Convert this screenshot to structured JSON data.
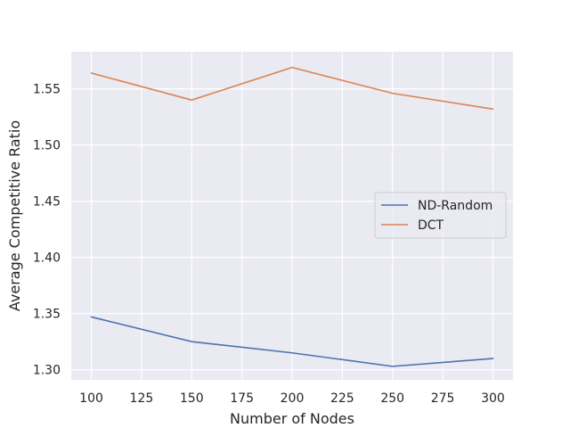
{
  "chart_data": {
    "type": "line",
    "title": "",
    "xlabel": "Number of Nodes",
    "ylabel": "Average Competitive Ratio",
    "x": [
      100,
      150,
      200,
      250,
      300
    ],
    "xticks": [
      "100",
      "125",
      "150",
      "175",
      "200",
      "225",
      "250",
      "275",
      "300"
    ],
    "xtick_values": [
      100,
      125,
      150,
      175,
      200,
      225,
      250,
      275,
      300
    ],
    "yticks": [
      "1.30",
      "1.35",
      "1.40",
      "1.45",
      "1.50",
      "1.55"
    ],
    "ytick_values": [
      1.3,
      1.35,
      1.4,
      1.45,
      1.5,
      1.55
    ],
    "xlim": [
      90,
      310
    ],
    "ylim": [
      1.291,
      1.583
    ],
    "grid": true,
    "legend_position": "center-right",
    "background_color": "#eaeaf2",
    "series": [
      {
        "name": "ND-Random",
        "color": "#4c72b0",
        "values": [
          1.347,
          1.325,
          1.315,
          1.303,
          1.31
        ]
      },
      {
        "name": "DCT",
        "color": "#dd8452",
        "values": [
          1.564,
          1.54,
          1.569,
          1.546,
          1.532
        ]
      }
    ]
  }
}
